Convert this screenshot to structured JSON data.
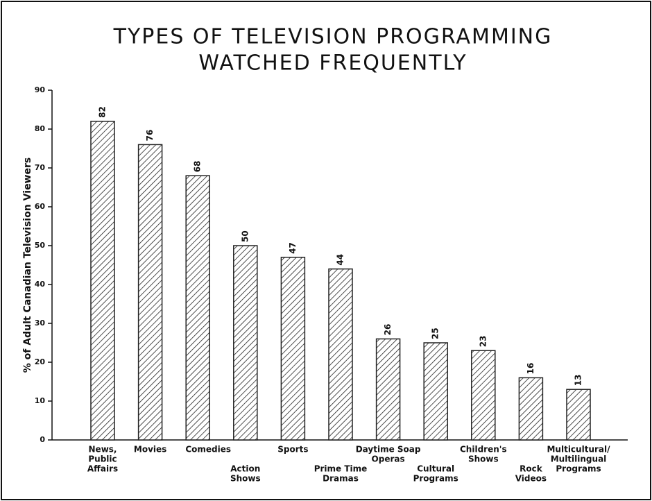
{
  "chart_data": {
    "type": "bar",
    "title": [
      "TYPES OF TELEVISION PROGRAMMING",
      "WATCHED FREQUENTLY"
    ],
    "y_label": "% of Adult Canadian Television Viewers",
    "categories": [
      [
        "News,",
        "Public",
        "Affairs"
      ],
      [
        "Movies"
      ],
      [
        "Comedies"
      ],
      [
        "Action",
        "Shows"
      ],
      [
        "Sports"
      ],
      [
        "Prime Time",
        "Dramas"
      ],
      [
        "Daytime Soap",
        "Operas"
      ],
      [
        "Cultural",
        "Programs"
      ],
      [
        "Children's",
        "Shows"
      ],
      [
        "Rock",
        "Videos"
      ],
      [
        "Multicultural/",
        "Multilingual",
        "Programs"
      ]
    ],
    "values": [
      82,
      76,
      68,
      50,
      47,
      44,
      26,
      25,
      23,
      16,
      13
    ],
    "color": "#222222",
    "ylim": [
      0,
      90
    ],
    "yticks": [
      0,
      10,
      20,
      30,
      40,
      50,
      60,
      70,
      80,
      90
    ]
  }
}
